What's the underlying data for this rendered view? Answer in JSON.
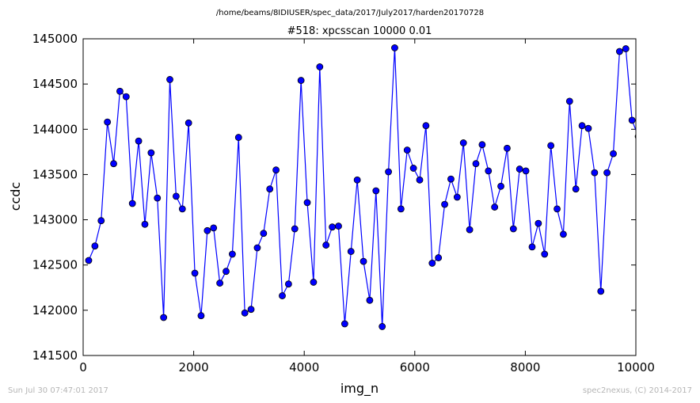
{
  "suptitle": "/home/beams/8IDIUSER/spec_data/2017/July2017/harden20170728",
  "footer": {
    "timestamp": "Sun Jul 30 07:47:01 2017",
    "credit": "spec2nexus, (C) 2014-2017"
  },
  "colors": {
    "series": "#0000ff",
    "marker_edge": "#000000"
  },
  "chart_data": {
    "type": "line",
    "title": "#518: xpcsscan 10000 0.01",
    "xlabel": "img_n",
    "ylabel": "ccdc",
    "xlim": [
      0,
      10000
    ],
    "ylim": [
      141500,
      145000
    ],
    "xticks": [
      "0",
      "2000",
      "4000",
      "6000",
      "8000",
      "10000"
    ],
    "yticks": [
      "141500",
      "142000",
      "142500",
      "143000",
      "143500",
      "144000",
      "144500",
      "145000"
    ],
    "markers": "circle",
    "grid": false,
    "series": [
      {
        "x": [
          100,
          213,
          326,
          439,
          552,
          665,
          778,
          891,
          1004,
          1117,
          1230,
          1343,
          1456,
          1569,
          1682,
          1795,
          1908,
          2021,
          2134,
          2247,
          2360,
          2473,
          2586,
          2699,
          2812,
          2925,
          3038,
          3151,
          3264,
          3377,
          3490,
          3603,
          3716,
          3829,
          3942,
          4055,
          4168,
          4281,
          4394,
          4507,
          4620,
          4733,
          4846,
          4959,
          5072,
          5185,
          5298,
          5411,
          5524,
          5637,
          5750,
          5863,
          5976,
          6089,
          6202,
          6315,
          6428,
          6541,
          6654,
          6767,
          6880,
          6993,
          7106,
          7219,
          7332,
          7445,
          7558,
          7671,
          7784,
          7897,
          8010,
          8123,
          8236,
          8349,
          8462,
          8575,
          8688,
          8801,
          8914,
          9027,
          9140,
          9253,
          9366,
          9479,
          9592,
          9705,
          9818,
          9931,
          10044
        ],
        "y": [
          142550,
          142710,
          142990,
          144080,
          143620,
          144420,
          144360,
          143180,
          143870,
          142950,
          143740,
          143240,
          141920,
          144550,
          143260,
          143120,
          144070,
          142410,
          141940,
          142880,
          142910,
          142300,
          142430,
          142620,
          143910,
          141970,
          142010,
          142690,
          142850,
          143340,
          143550,
          142160,
          142290,
          142900,
          144540,
          143190,
          142310,
          144690,
          142720,
          142920,
          142930,
          141850,
          142650,
          143440,
          142540,
          142110,
          143320,
          141820,
          143530,
          144900,
          143120,
          143770,
          143570,
          143440,
          144040,
          142520,
          142580,
          143170,
          143450,
          143250,
          143850,
          142890,
          143620,
          143830,
          143540,
          143140,
          143370,
          143790,
          142900,
          143560,
          143540,
          142700,
          142960,
          142620,
          143820,
          143120,
          142840,
          144310,
          143340,
          144040,
          144010,
          143520,
          142210,
          143520,
          143730,
          144860,
          144890,
          144100,
          143920
        ]
      }
    ]
  }
}
